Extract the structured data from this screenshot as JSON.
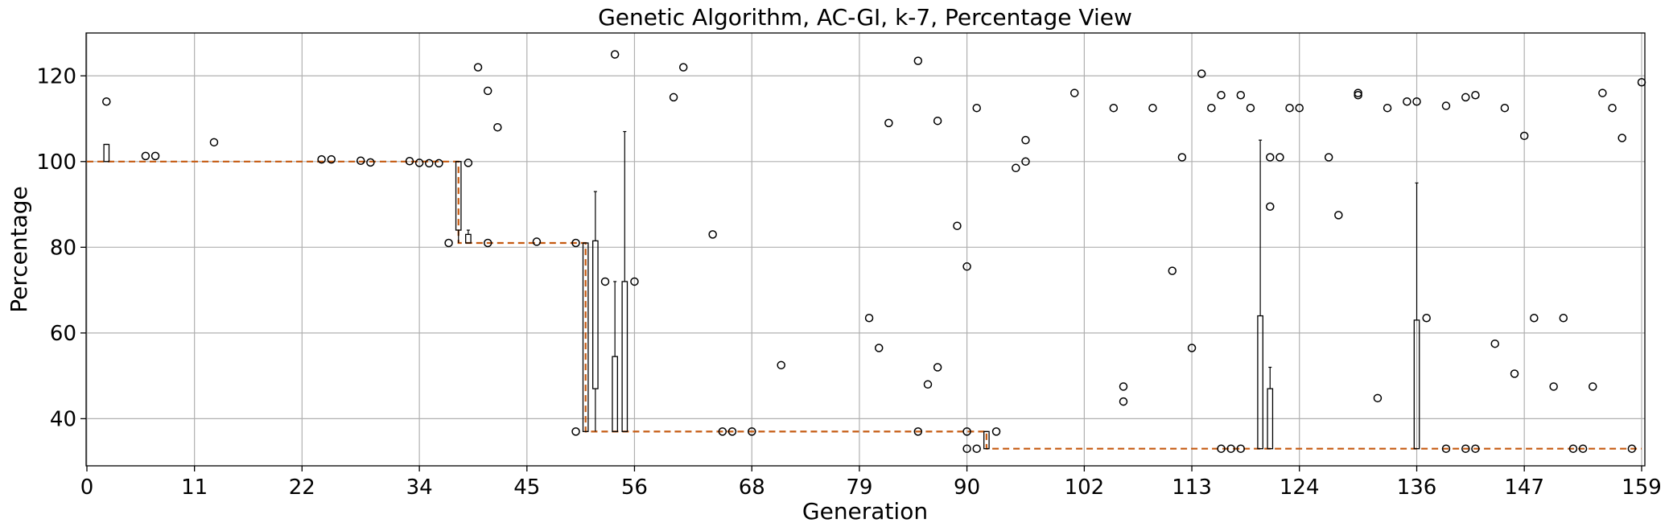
{
  "chart_data": {
    "type": "box",
    "title": "Genetic Algorithm, AC-GI, k-7, Percentage View",
    "xlabel": "Generation",
    "ylabel": "Percentage",
    "xlim": [
      0,
      159
    ],
    "ylim": [
      29,
      130
    ],
    "x_ticks": [
      0,
      11,
      22,
      34,
      45,
      56,
      68,
      79,
      90,
      102,
      113,
      124,
      136,
      147,
      159
    ],
    "y_ticks": [
      40,
      60,
      80,
      100,
      120
    ],
    "grid": true,
    "median_line": [
      [
        0,
        100
      ],
      [
        38,
        100
      ],
      [
        38,
        81
      ],
      [
        51,
        81
      ],
      [
        51,
        37
      ],
      [
        92,
        37
      ],
      [
        92,
        33
      ],
      [
        159,
        33
      ]
    ],
    "boxes": [
      {
        "x": 2,
        "q1": 100,
        "q3": 104,
        "whisker_low": 100,
        "whisker_high": 104
      },
      {
        "x": 38,
        "q1": 84,
        "q3": 100,
        "whisker_low": 81,
        "whisker_high": 100
      },
      {
        "x": 39,
        "q1": 81,
        "q3": 83,
        "whisker_low": 81,
        "whisker_high": 84
      },
      {
        "x": 51,
        "q1": 37,
        "q3": 81,
        "whisker_low": 37,
        "whisker_high": 81
      },
      {
        "x": 52,
        "q1": 47,
        "q3": 81.5,
        "whisker_low": 37,
        "whisker_high": 93
      },
      {
        "x": 54,
        "q1": 37,
        "q3": 54.5,
        "whisker_low": 37,
        "whisker_high": 72
      },
      {
        "x": 55,
        "q1": 37,
        "q3": 72,
        "whisker_low": 37,
        "whisker_high": 107
      },
      {
        "x": 92,
        "q1": 33,
        "q3": 37,
        "whisker_low": 33,
        "whisker_high": 37
      },
      {
        "x": 120,
        "q1": 33,
        "q3": 64,
        "whisker_low": 33,
        "whisker_high": 105
      },
      {
        "x": 121,
        "q1": 33,
        "q3": 47,
        "whisker_low": 33,
        "whisker_high": 52
      },
      {
        "x": 136,
        "q1": 33,
        "q3": 63,
        "whisker_low": 33,
        "whisker_high": 95
      }
    ],
    "outliers": [
      [
        2,
        114
      ],
      [
        6,
        101.3
      ],
      [
        7,
        101.3
      ],
      [
        13,
        104.5
      ],
      [
        24,
        100.5
      ],
      [
        25,
        100.5
      ],
      [
        28,
        100.2
      ],
      [
        29,
        99.8
      ],
      [
        33,
        100.1
      ],
      [
        34,
        99.7
      ],
      [
        35,
        99.6
      ],
      [
        36,
        99.6
      ],
      [
        37,
        81
      ],
      [
        39,
        99.7
      ],
      [
        40,
        122
      ],
      [
        41,
        116.5
      ],
      [
        41,
        81
      ],
      [
        42,
        108
      ],
      [
        46,
        81.3
      ],
      [
        50,
        81
      ],
      [
        50,
        37
      ],
      [
        53,
        72
      ],
      [
        54,
        125
      ],
      [
        56,
        72
      ],
      [
        60,
        115
      ],
      [
        61,
        122
      ],
      [
        64,
        83
      ],
      [
        65,
        37
      ],
      [
        66,
        37
      ],
      [
        68,
        37
      ],
      [
        71,
        52.5
      ],
      [
        80,
        63.5
      ],
      [
        81,
        56.5
      ],
      [
        82,
        109
      ],
      [
        85,
        123.5
      ],
      [
        85,
        37
      ],
      [
        86,
        48
      ],
      [
        87,
        109.5
      ],
      [
        87,
        52
      ],
      [
        89,
        85
      ],
      [
        90,
        75.5
      ],
      [
        90,
        37
      ],
      [
        90,
        33
      ],
      [
        91,
        112.5
      ],
      [
        91,
        33
      ],
      [
        93,
        37
      ],
      [
        95,
        98.5
      ],
      [
        96,
        105
      ],
      [
        96,
        100
      ],
      [
        101,
        116
      ],
      [
        105,
        112.5
      ],
      [
        106,
        47.5
      ],
      [
        106,
        44
      ],
      [
        109,
        112.5
      ],
      [
        111,
        74.5
      ],
      [
        112,
        101
      ],
      [
        113,
        56.5
      ],
      [
        114,
        120.5
      ],
      [
        115,
        112.5
      ],
      [
        116,
        115.5
      ],
      [
        116,
        33
      ],
      [
        117,
        33
      ],
      [
        118,
        115.5
      ],
      [
        118,
        33
      ],
      [
        119,
        112.5
      ],
      [
        121,
        101
      ],
      [
        121,
        89.5
      ],
      [
        122,
        101
      ],
      [
        123,
        112.5
      ],
      [
        124,
        112.5
      ],
      [
        127,
        101
      ],
      [
        128,
        87.5
      ],
      [
        130,
        116
      ],
      [
        130,
        115.5
      ],
      [
        132,
        44.8
      ],
      [
        133,
        112.5
      ],
      [
        135,
        114
      ],
      [
        136,
        114
      ],
      [
        137,
        63.5
      ],
      [
        139,
        113
      ],
      [
        139,
        33
      ],
      [
        141,
        115
      ],
      [
        141,
        33
      ],
      [
        142,
        115.5
      ],
      [
        142,
        33
      ],
      [
        144,
        57.5
      ],
      [
        145,
        112.5
      ],
      [
        146,
        50.5
      ],
      [
        147,
        106
      ],
      [
        148,
        63.5
      ],
      [
        150,
        47.5
      ],
      [
        151,
        63.5
      ],
      [
        152,
        33
      ],
      [
        153,
        33
      ],
      [
        154,
        47.5
      ],
      [
        155,
        116
      ],
      [
        156,
        112.5
      ],
      [
        157,
        105.5
      ],
      [
        158,
        33
      ],
      [
        159,
        118.5
      ]
    ],
    "colors": {
      "median": "#c55a11",
      "grid": "#b0b0b0",
      "box": "#000000"
    }
  }
}
